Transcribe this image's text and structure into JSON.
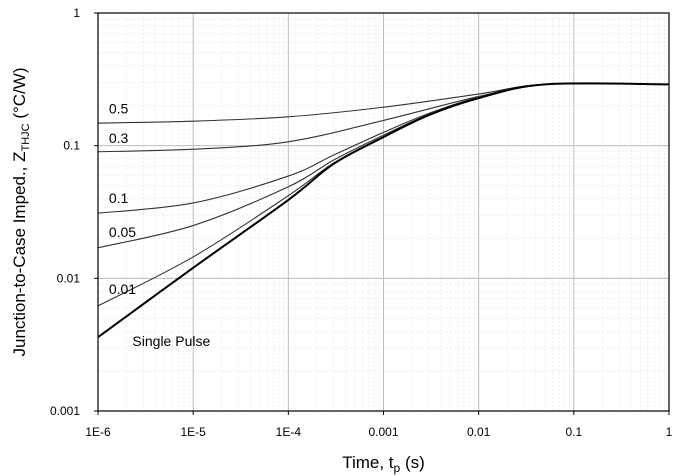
{
  "chart_data": {
    "type": "line",
    "xlabel_main": "Time, t",
    "xlabel_sub": "p",
    "xlabel_unit": " (s)",
    "ylabel_main": "Junction-to-Case Imped., Z",
    "ylabel_sub": "THJC",
    "ylabel_unit": " (°C/W)",
    "x_scale": "log",
    "y_scale": "log",
    "xlim": [
      1e-06,
      1
    ],
    "ylim": [
      0.001,
      1
    ],
    "grid": true,
    "x_ticks": [
      {
        "value": 1e-06,
        "label": "1E-6"
      },
      {
        "value": 1e-05,
        "label": "1E-5"
      },
      {
        "value": 0.0001,
        "label": "1E-4"
      },
      {
        "value": 0.001,
        "label": "0.001"
      },
      {
        "value": 0.01,
        "label": "0.01"
      },
      {
        "value": 0.1,
        "label": "0.1"
      },
      {
        "value": 1,
        "label": "1"
      }
    ],
    "y_ticks": [
      {
        "value": 0.001,
        "label": "0.001"
      },
      {
        "value": 0.01,
        "label": "0.01"
      },
      {
        "value": 0.1,
        "label": "0.1"
      },
      {
        "value": 1,
        "label": "1"
      }
    ],
    "series": [
      {
        "name": "0.5",
        "color": "#333333",
        "x": [
          1e-06,
          1e-05,
          0.0001,
          0.001,
          0.01,
          0.05,
          1
        ],
        "y": [
          0.148,
          0.153,
          0.165,
          0.195,
          0.245,
          0.29,
          0.29
        ]
      },
      {
        "name": "0.3",
        "color": "#333333",
        "x": [
          1e-06,
          1e-05,
          0.0001,
          0.001,
          0.01,
          0.05,
          1
        ],
        "y": [
          0.09,
          0.094,
          0.107,
          0.155,
          0.235,
          0.29,
          0.29
        ]
      },
      {
        "name": "0.1",
        "color": "#333333",
        "x": [
          1e-06,
          1e-05,
          0.0001,
          0.0003,
          0.001,
          0.003,
          0.01,
          0.05,
          1
        ],
        "y": [
          0.031,
          0.037,
          0.059,
          0.085,
          0.126,
          0.175,
          0.232,
          0.29,
          0.29
        ]
      },
      {
        "name": "0.05",
        "color": "#333333",
        "x": [
          1e-06,
          1e-05,
          0.0001,
          0.0003,
          0.001,
          0.003,
          0.01,
          0.05,
          1
        ],
        "y": [
          0.017,
          0.025,
          0.049,
          0.078,
          0.12,
          0.172,
          0.23,
          0.29,
          0.29
        ]
      },
      {
        "name": "0.01",
        "color": "#333333",
        "x": [
          1e-06,
          1e-05,
          0.0001,
          0.0003,
          0.001,
          0.003,
          0.01,
          0.05,
          1
        ],
        "y": [
          0.0062,
          0.0145,
          0.042,
          0.074,
          0.117,
          0.17,
          0.229,
          0.29,
          0.29
        ]
      },
      {
        "name": "Single Pulse",
        "color": "#000000",
        "x": [
          1e-06,
          1e-05,
          0.0001,
          0.0003,
          0.001,
          0.003,
          0.01,
          0.05,
          1
        ],
        "y": [
          0.0036,
          0.012,
          0.039,
          0.073,
          0.116,
          0.17,
          0.228,
          0.29,
          0.29
        ]
      }
    ],
    "annotations": [
      {
        "text": "0.5",
        "x": 1.3e-06,
        "y": 0.175
      },
      {
        "text": "0.3",
        "x": 1.3e-06,
        "y": 0.105
      },
      {
        "text": "0.1",
        "x": 1.3e-06,
        "y": 0.037
      },
      {
        "text": "0.05",
        "x": 1.3e-06,
        "y": 0.0205
      },
      {
        "text": "0.01",
        "x": 1.3e-06,
        "y": 0.0076
      },
      {
        "text": "Single Pulse",
        "x": 2.3e-06,
        "y": 0.0031
      }
    ]
  }
}
